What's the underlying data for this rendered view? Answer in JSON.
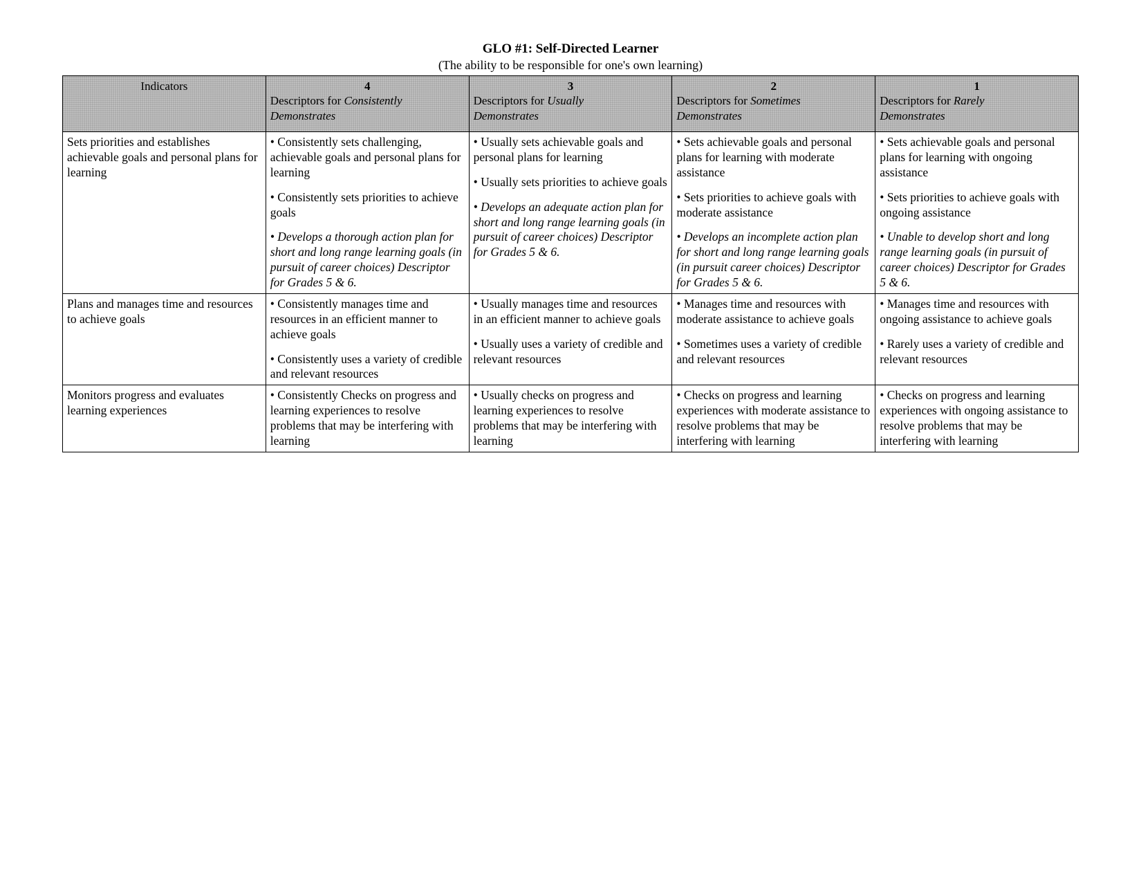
{
  "title": "GLO #1:  Self-Directed Learner",
  "subtitle": "(The ability to be responsible for one's own learning)",
  "columns": {
    "indicators_label": "Indicators",
    "levels": [
      {
        "num": "4",
        "prefix": "Descriptors for ",
        "freq": "Consistently",
        "suffix": "Demonstrates"
      },
      {
        "num": "3",
        "prefix": "Descriptors for ",
        "freq": "Usually",
        "suffix": "Demonstrates"
      },
      {
        "num": "2",
        "prefix": "Descriptors for ",
        "freq": "Sometimes",
        "suffix": "Demonstrates"
      },
      {
        "num": "1",
        "prefix": "Descriptors for ",
        "freq": "Rarely",
        "suffix": "Demonstrates"
      }
    ]
  },
  "rows": [
    {
      "indicator": "Sets priorities and establishes achievable goals and personal plans for learning",
      "cells": [
        [
          {
            "text": "• Consistently sets challenging, achievable goals and personal plans for learning",
            "italic": false
          },
          {
            "text": "• Consistently sets priorities to achieve goals",
            "italic": false
          },
          {
            "text": "• Develops a thorough action plan for short and long range learning goals (in pursuit of career choices) Descriptor for Grades 5 & 6.",
            "italic": true
          }
        ],
        [
          {
            "text": "• Usually sets achievable goals and personal plans for learning",
            "italic": false
          },
          {
            "text": "• Usually sets priorities to achieve goals",
            "italic": false
          },
          {
            "text": "• Develops an adequate action plan for short and long range learning goals (in pursuit of career choices) Descriptor for Grades 5 & 6.",
            "italic": true
          }
        ],
        [
          {
            "text": "• Sets achievable goals and personal plans for learning with moderate assistance",
            "italic": false
          },
          {
            "text": "• Sets priorities to achieve goals with moderate assistance",
            "italic": false
          },
          {
            "text": "• Develops an incomplete action plan for short and long range learning goals (in pursuit career choices) Descriptor for Grades 5 & 6.",
            "italic": true
          }
        ],
        [
          {
            "text": "• Sets achievable goals and personal plans for learning with ongoing assistance",
            "italic": false
          },
          {
            "text": "• Sets priorities to achieve goals with ongoing assistance",
            "italic": false
          },
          {
            "text": "• Unable to develop short and long range learning goals (in pursuit of career choices) Descriptor for Grades 5 & 6.",
            "italic": true
          }
        ]
      ]
    },
    {
      "indicator": "Plans and manages time and resources to achieve goals",
      "cells": [
        [
          {
            "text": "• Consistently manages time and resources in an efficient manner to achieve goals",
            "italic": false
          },
          {
            "text": "• Consistently uses a variety of credible and relevant resources",
            "italic": false
          }
        ],
        [
          {
            "text": "• Usually manages time and resources in an efficient manner to achieve goals",
            "italic": false
          },
          {
            "text": "• Usually uses a variety of credible and relevant resources",
            "italic": false
          }
        ],
        [
          {
            "text": "• Manages time and resources with moderate assistance to achieve goals",
            "italic": false
          },
          {
            "text": "• Sometimes uses a variety of credible and relevant resources",
            "italic": false
          }
        ],
        [
          {
            "text": "• Manages time and resources with ongoing assistance to achieve goals",
            "italic": false
          },
          {
            "text": "• Rarely uses a variety of credible and relevant resources",
            "italic": false
          }
        ]
      ]
    },
    {
      "indicator": "Monitors progress and evaluates learning experiences",
      "cells": [
        [
          {
            "text": "• Consistently Checks on progress and learning experiences to resolve problems that may be interfering with learning",
            "italic": false
          }
        ],
        [
          {
            "text": "• Usually checks on progress and learning experiences to resolve problems that may be interfering with learning",
            "italic": false
          }
        ],
        [
          {
            "text": "• Checks on progress and learning experiences with moderate assistance to resolve problems that may be interfering with learning",
            "italic": false
          }
        ],
        [
          {
            "text": "• Checks on progress and learning experiences with ongoing assistance to resolve problems that may be interfering with learning",
            "italic": false
          }
        ]
      ]
    }
  ]
}
